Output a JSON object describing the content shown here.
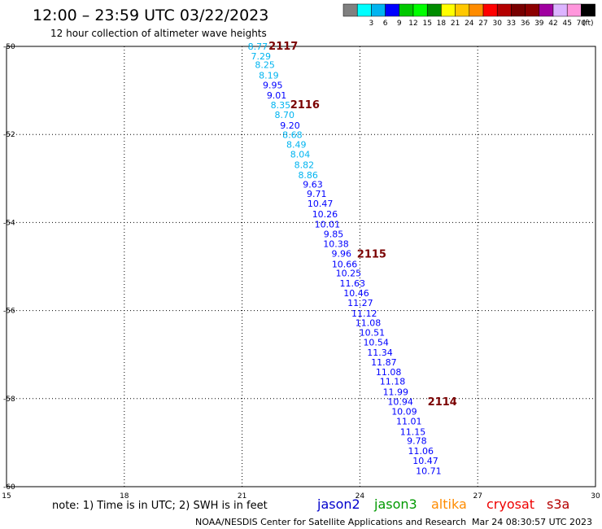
{
  "title": "12:00 – 23:59 UTC 03/22/2023",
  "subtitle": "12 hour collection of altimeter wave heights",
  "legend": {
    "swatches": [
      {
        "color": "#808080",
        "label": ""
      },
      {
        "color": "#00ffff",
        "label": "3"
      },
      {
        "color": "#00b4f0",
        "label": "6"
      },
      {
        "color": "#0000ff",
        "label": "9"
      },
      {
        "color": "#00c800",
        "label": "12"
      },
      {
        "color": "#00ff00",
        "label": "15"
      },
      {
        "color": "#008c00",
        "label": "18"
      },
      {
        "color": "#ffff00",
        "label": "21"
      },
      {
        "color": "#ffc800",
        "label": "24"
      },
      {
        "color": "#ff8c00",
        "label": "27"
      },
      {
        "color": "#ff0000",
        "label": "30"
      },
      {
        "color": "#b40000",
        "label": "33"
      },
      {
        "color": "#780000",
        "label": "36"
      },
      {
        "color": "#8c0000",
        "label": "39"
      },
      {
        "color": "#a000a0",
        "label": "42"
      },
      {
        "color": "#dcb4ff",
        "label": "45"
      },
      {
        "color": "#ff96dc",
        "label": "70"
      },
      {
        "color": "#000000",
        "label": ""
      }
    ],
    "unit": "(ft)"
  },
  "chart_data": {
    "type": "scatter",
    "title": "12:00 – 23:59 UTC 03/22/2023",
    "subtitle": "12 hour collection of altimeter wave heights",
    "xlim": [
      15,
      30
    ],
    "ylim": [
      -60,
      -50
    ],
    "x_ticks": [
      "15",
      "18",
      "21",
      "24",
      "27",
      "30"
    ],
    "y_ticks": [
      "-50",
      "-52",
      "-54",
      "-56",
      "-58",
      "-60"
    ],
    "grid": true,
    "points": [
      {
        "lon": 21.4,
        "lat": -50.0,
        "swh": "8.77",
        "color": "#00b4f0"
      },
      {
        "lon": 21.48,
        "lat": -50.22,
        "swh": "7.29",
        "color": "#00b4f0"
      },
      {
        "lon": 21.58,
        "lat": -50.42,
        "swh": "8.25",
        "color": "#00b4f0"
      },
      {
        "lon": 21.68,
        "lat": -50.66,
        "swh": "8.19",
        "color": "#00b4f0"
      },
      {
        "lon": 21.78,
        "lat": -50.88,
        "swh": "9.95",
        "color": "#0000ff"
      },
      {
        "lon": 21.88,
        "lat": -51.11,
        "swh": "9.01",
        "color": "#0000ff"
      },
      {
        "lon": 21.98,
        "lat": -51.33,
        "swh": "8.35",
        "color": "#00b4f0"
      },
      {
        "lon": 22.08,
        "lat": -51.55,
        "swh": "8.70",
        "color": "#00b4f0"
      },
      {
        "lon": 22.22,
        "lat": -51.79,
        "swh": "9.20",
        "color": "#0000ff"
      },
      {
        "lon": 22.28,
        "lat": -52.01,
        "swh": "8.68",
        "color": "#00b4f0"
      },
      {
        "lon": 22.38,
        "lat": -52.23,
        "swh": "8.49",
        "color": "#00b4f0"
      },
      {
        "lon": 22.48,
        "lat": -52.45,
        "swh": "8.04",
        "color": "#00b4f0"
      },
      {
        "lon": 22.58,
        "lat": -52.69,
        "swh": "8.82",
        "color": "#00b4f0"
      },
      {
        "lon": 22.68,
        "lat": -52.92,
        "swh": "8.86",
        "color": "#00b4f0"
      },
      {
        "lon": 22.8,
        "lat": -53.13,
        "swh": "9.63",
        "color": "#0000ff"
      },
      {
        "lon": 22.9,
        "lat": -53.35,
        "swh": "9.71",
        "color": "#0000ff"
      },
      {
        "lon": 22.99,
        "lat": -53.57,
        "swh": "10.47",
        "color": "#0000ff"
      },
      {
        "lon": 23.11,
        "lat": -53.81,
        "swh": "10.26",
        "color": "#0000ff"
      },
      {
        "lon": 23.17,
        "lat": -54.04,
        "swh": "10.01",
        "color": "#0000ff"
      },
      {
        "lon": 23.33,
        "lat": -54.26,
        "swh": "9.85",
        "color": "#0000ff"
      },
      {
        "lon": 23.39,
        "lat": -54.48,
        "swh": "10.38",
        "color": "#0000ff"
      },
      {
        "lon": 23.53,
        "lat": -54.7,
        "swh": "9.96",
        "color": "#0000ff"
      },
      {
        "lon": 23.61,
        "lat": -54.94,
        "swh": "10.66",
        "color": "#0000ff"
      },
      {
        "lon": 23.71,
        "lat": -55.15,
        "swh": "10.25",
        "color": "#0000ff"
      },
      {
        "lon": 23.81,
        "lat": -55.38,
        "swh": "11.63",
        "color": "#0000ff"
      },
      {
        "lon": 23.91,
        "lat": -55.6,
        "swh": "10.46",
        "color": "#0000ff"
      },
      {
        "lon": 24.01,
        "lat": -55.82,
        "swh": "11.27",
        "color": "#0000ff"
      },
      {
        "lon": 24.11,
        "lat": -56.06,
        "swh": "11.12",
        "color": "#0000ff"
      },
      {
        "lon": 24.21,
        "lat": -56.28,
        "swh": "11.08",
        "color": "#0000ff"
      },
      {
        "lon": 24.31,
        "lat": -56.5,
        "swh": "10.51",
        "color": "#0000ff"
      },
      {
        "lon": 24.41,
        "lat": -56.72,
        "swh": "10.54",
        "color": "#0000ff"
      },
      {
        "lon": 24.51,
        "lat": -56.95,
        "swh": "11.34",
        "color": "#0000ff"
      },
      {
        "lon": 24.61,
        "lat": -57.17,
        "swh": "11.87",
        "color": "#0000ff"
      },
      {
        "lon": 24.73,
        "lat": -57.39,
        "swh": "11.08",
        "color": "#0000ff"
      },
      {
        "lon": 24.83,
        "lat": -57.61,
        "swh": "11.18",
        "color": "#0000ff"
      },
      {
        "lon": 24.91,
        "lat": -57.85,
        "swh": "11.99",
        "color": "#0000ff"
      },
      {
        "lon": 25.03,
        "lat": -58.07,
        "swh": "10.94",
        "color": "#0000ff"
      },
      {
        "lon": 25.13,
        "lat": -58.29,
        "swh": "10.09",
        "color": "#0000ff"
      },
      {
        "lon": 25.25,
        "lat": -58.51,
        "swh": "11.01",
        "color": "#0000ff"
      },
      {
        "lon": 25.35,
        "lat": -58.75,
        "swh": "11.15",
        "color": "#0000ff"
      },
      {
        "lon": 25.45,
        "lat": -58.96,
        "swh": "9.78",
        "color": "#0000ff"
      },
      {
        "lon": 25.55,
        "lat": -59.19,
        "swh": "11.06",
        "color": "#0000ff"
      },
      {
        "lon": 25.67,
        "lat": -59.41,
        "swh": "10.47",
        "color": "#0000ff"
      },
      {
        "lon": 25.75,
        "lat": -59.64,
        "swh": "10.71",
        "color": "#0000ff"
      }
    ],
    "pass_labels": [
      {
        "label": "2117",
        "lon": 22.05,
        "lat": -49.98
      },
      {
        "label": "2116",
        "lon": 22.6,
        "lat": -51.31
      },
      {
        "label": "2115",
        "lon": 24.3,
        "lat": -54.7
      },
      {
        "label": "2114",
        "lon": 26.1,
        "lat": -58.06
      }
    ]
  },
  "note": "note: 1) Time is in UTC; 2) SWH is in feet",
  "satellites": [
    {
      "name": "jason2",
      "color": "#0000cc"
    },
    {
      "name": "jason3",
      "color": "#009900"
    },
    {
      "name": "altika",
      "color": "#ff8c00"
    },
    {
      "name": "cryosat",
      "color": "#ee0000"
    },
    {
      "name": "s3a",
      "color": "#b40000"
    }
  ],
  "footer": {
    "credit": "NOAA/NESDIS Center for Satellite Applications and Research",
    "timestamp": "Mar 24 08:30:57 UTC 2023"
  }
}
